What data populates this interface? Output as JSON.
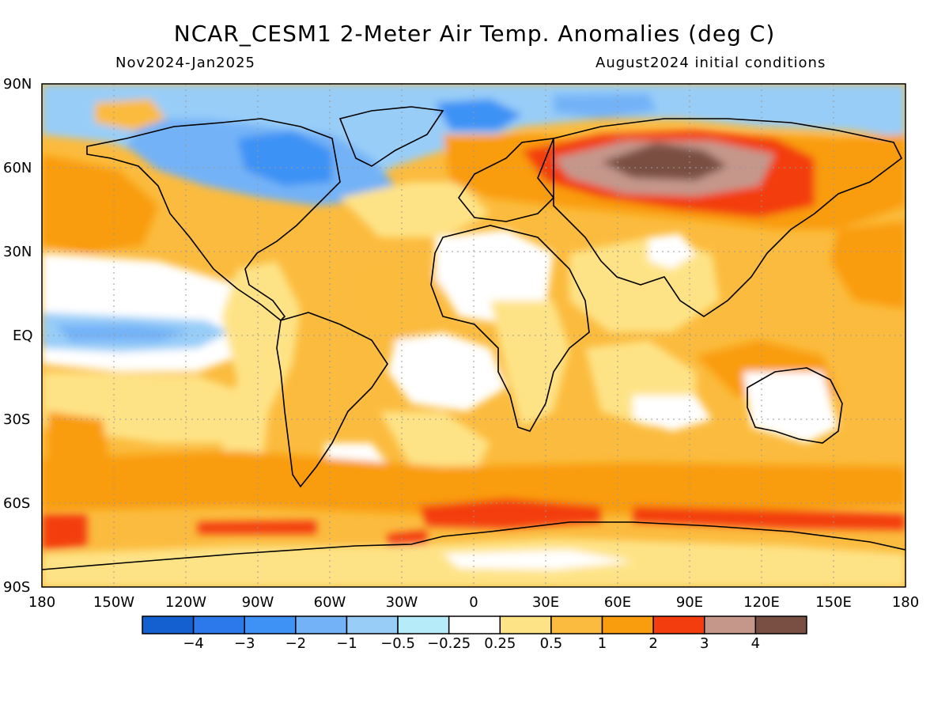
{
  "header": {
    "title": "NCAR_CESM1 2-Meter Air Temp. Anomalies (deg C)",
    "period": "Nov2024-Jan2025",
    "init": "August2024 initial conditions"
  },
  "axes": {
    "lat_labels": [
      "90N",
      "60N",
      "30N",
      "EQ",
      "30S",
      "60S",
      "90S"
    ],
    "lon_labels": [
      "180",
      "150W",
      "120W",
      "90W",
      "60W",
      "30W",
      "0",
      "30E",
      "60E",
      "90E",
      "120E",
      "150E",
      "180"
    ]
  },
  "colorbar": {
    "colors": [
      "#1560d0",
      "#2b79ea",
      "#3e92f5",
      "#73b2f7",
      "#98cdf8",
      "#b6ebfa",
      "#ffffff",
      "#fee386",
      "#fbbb3e",
      "#f99c0e",
      "#f33d0e",
      "#c5978b",
      "#7a4f43"
    ],
    "labels": [
      "-4",
      "-3",
      "-2",
      "-1",
      "-0.5",
      "-0.25",
      "0.25",
      "0.5",
      "1",
      "2",
      "3",
      "4"
    ]
  },
  "map": {
    "background_color": "#fbbb3e",
    "land_outline": "black coastline"
  }
}
